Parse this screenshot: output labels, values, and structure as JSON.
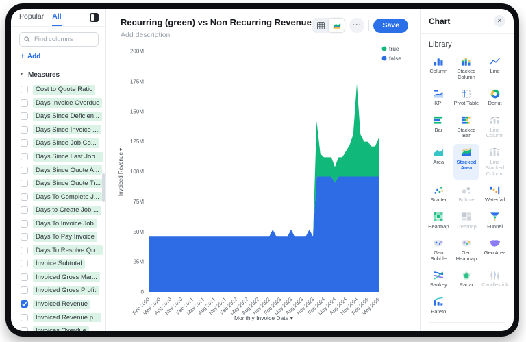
{
  "sidebar": {
    "tabs": [
      {
        "label": "Popular",
        "active": false
      },
      {
        "label": "All",
        "active": true
      }
    ],
    "search_placeholder": "Find columns",
    "add_plus": "+",
    "add_label": "Add",
    "section_label": "Measures",
    "items": [
      {
        "label": "Cost to Quote Ratio",
        "checked": false
      },
      {
        "label": "Days Invoice Overdue",
        "checked": false
      },
      {
        "label": "Days Since Deficien...",
        "checked": false
      },
      {
        "label": "Days Since Invoice ...",
        "checked": false
      },
      {
        "label": "Days Since Job Co...",
        "checked": false
      },
      {
        "label": "Days Since Last Job...",
        "checked": false
      },
      {
        "label": "Days Since Quote A...",
        "checked": false
      },
      {
        "label": "Days Since Quote Tr...",
        "checked": false
      },
      {
        "label": "Days To Complete J...",
        "checked": false
      },
      {
        "label": "Days to Create Job ...",
        "checked": false
      },
      {
        "label": "Days To Invoice Job",
        "checked": false
      },
      {
        "label": "Days To Pay Invoice",
        "checked": false
      },
      {
        "label": "Days To Resolve Qu...",
        "checked": false
      },
      {
        "label": "Invoice Subtotal",
        "checked": false
      },
      {
        "label": "Invoiced Gross Mar...",
        "checked": false
      },
      {
        "label": "Invoiced Gross Profit",
        "checked": false
      },
      {
        "label": "Invoiced Revenue",
        "checked": true
      },
      {
        "label": "Invoiced Revenue p...",
        "checked": false
      },
      {
        "label": "Invoices Overdue",
        "checked": false
      }
    ]
  },
  "header": {
    "title": "Recurring (green) vs Non Recurring Revenue (blue)",
    "description": "Add description",
    "save_label": "Save"
  },
  "chart_data": {
    "type": "area",
    "stacked": true,
    "title": "Recurring (green) vs Non Recurring Revenue (blue)",
    "x_start": "Feb 2020",
    "x_end": "May 2025",
    "points": 64,
    "x_axis": {
      "label": "Monthly Invoice Date",
      "menu_arrow": "▾",
      "tick_every_months": 3,
      "ticks": [
        "Feb 2020",
        "May 2020",
        "Aug 2020",
        "Nov 2020",
        "Feb 2021",
        "May 2021",
        "Aug 2021",
        "Nov 2021",
        "Feb 2022",
        "May 2022",
        "Aug 2022",
        "Nov 2022",
        "Feb 2023",
        "May 2023",
        "Aug 2023",
        "Nov 2023",
        "Feb 2024",
        "May 2024",
        "Aug 2024",
        "Nov 2024",
        "Feb 2025",
        "May 2025"
      ]
    },
    "y_axis": {
      "label": "Invoiced Revenue",
      "menu_arrow": "▾",
      "unit": "M",
      "max_m": 200,
      "ticks": [
        "0",
        "25M",
        "50M",
        "75M",
        "100M",
        "125M",
        "150M",
        "175M",
        "200M"
      ]
    },
    "legend": [
      {
        "label": "true",
        "color": "#10b97a"
      },
      {
        "label": "false",
        "color": "#2d6ce5"
      }
    ],
    "series": [
      {
        "name": "false",
        "color": "#2d6ce5",
        "values_m": [
          46,
          46,
          46,
          46,
          46,
          46,
          46,
          46,
          46,
          46,
          46,
          46,
          46,
          46,
          46,
          46,
          46,
          46,
          46,
          46,
          46,
          46,
          46,
          46,
          46,
          46,
          46,
          46,
          46,
          46,
          46,
          46,
          46,
          46,
          52,
          46,
          46,
          46,
          46,
          52,
          46,
          46,
          46,
          46,
          52,
          46,
          96,
          96,
          96,
          96,
          96,
          91,
          96,
          96,
          96,
          96,
          96,
          96,
          96,
          96,
          96,
          96,
          96,
          96
        ]
      },
      {
        "name": "true",
        "color": "#10b97a",
        "values_m": [
          0,
          0,
          0,
          0,
          0,
          0,
          0,
          0,
          0,
          0,
          0,
          0,
          0,
          0,
          0,
          0,
          0,
          0,
          0,
          0,
          0,
          0,
          0,
          0,
          0,
          0,
          0,
          0,
          0,
          0,
          0,
          0,
          0,
          0,
          0,
          0,
          0,
          0,
          0,
          0,
          0,
          0,
          0,
          0,
          0,
          0,
          46,
          19,
          16,
          16,
          16,
          13,
          16,
          16,
          21,
          26,
          35,
          77,
          35,
          29,
          29,
          25,
          25,
          32
        ]
      }
    ]
  },
  "right_panel": {
    "title": "Chart",
    "section_label": "Library",
    "items": [
      {
        "label": "Column",
        "icon": "column"
      },
      {
        "label": "Stacked Column",
        "icon": "stacked-column"
      },
      {
        "label": "Line",
        "icon": "line"
      },
      {
        "label": "KPI",
        "icon": "kpi"
      },
      {
        "label": "Pivot Table",
        "icon": "pivot-table"
      },
      {
        "label": "Donut",
        "icon": "donut"
      },
      {
        "label": "Bar",
        "icon": "bar"
      },
      {
        "label": "Stacked Bar",
        "icon": "stacked-bar"
      },
      {
        "label": "Line Column",
        "icon": "line-column",
        "disabled": true
      },
      {
        "label": "Area",
        "icon": "area"
      },
      {
        "label": "Stacked Area",
        "icon": "stacked-area",
        "selected": true
      },
      {
        "label": "Line Stacked Column",
        "icon": "line-stacked-column",
        "disabled": true
      },
      {
        "label": "Scatter",
        "icon": "scatter"
      },
      {
        "label": "Bubble",
        "icon": "bubble",
        "disabled": true
      },
      {
        "label": "Waterfall",
        "icon": "waterfall"
      },
      {
        "label": "Heatmap",
        "icon": "heatmap"
      },
      {
        "label": "Treemap",
        "icon": "treemap",
        "disabled": true
      },
      {
        "label": "Funnel",
        "icon": "funnel"
      },
      {
        "label": "Geo Bubble",
        "icon": "geo-bubble"
      },
      {
        "label": "Geo Heatmap",
        "icon": "geo-heatmap"
      },
      {
        "label": "Geo Area",
        "icon": "geo-area"
      },
      {
        "label": "Sankey",
        "icon": "sankey"
      },
      {
        "label": "Radar",
        "icon": "radar"
      },
      {
        "label": "Candlestick",
        "icon": "candlestick",
        "disabled": true
      },
      {
        "label": "Pareto",
        "icon": "pareto"
      }
    ]
  },
  "colors": {
    "accent_blue": "#2b70e8",
    "series_blue": "#2d6ce5",
    "series_green": "#10b97a",
    "mint_highlight": "#dbf3e6",
    "window_frame": "#0c0e11"
  }
}
